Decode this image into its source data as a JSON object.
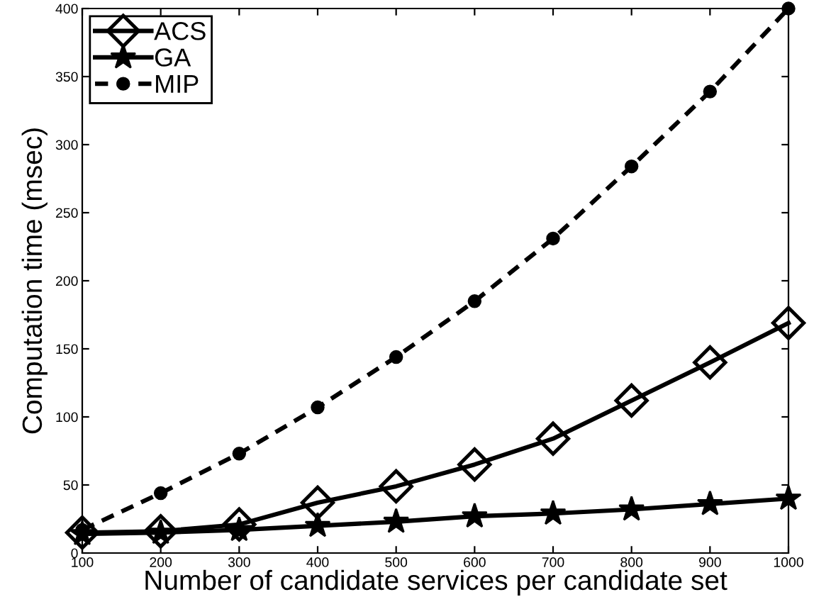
{
  "chart_data": {
    "type": "line",
    "xlabel": "Number of candidate services per candidate set",
    "ylabel": "Computation time (msec)",
    "x": [
      100,
      200,
      300,
      400,
      500,
      600,
      700,
      800,
      900,
      1000
    ],
    "series": [
      {
        "name": "ACS",
        "color": "#000000",
        "marker": "diamond",
        "line_style": "solid",
        "values": [
          15,
          16,
          21,
          37,
          49,
          65,
          84,
          112,
          140,
          169
        ]
      },
      {
        "name": "GA",
        "color": "#000000",
        "marker": "star",
        "line_style": "solid",
        "values": [
          14,
          15,
          17,
          20,
          23,
          27,
          29,
          32,
          36,
          40
        ]
      },
      {
        "name": "MIP",
        "color": "#000000",
        "marker": "circle",
        "line_style": "dashed",
        "values": [
          17,
          44,
          73,
          107,
          144,
          185,
          231,
          284,
          339,
          400
        ]
      }
    ],
    "xlim": [
      100,
      1000
    ],
    "ylim": [
      0,
      400
    ],
    "xticks": [
      100,
      200,
      300,
      400,
      500,
      600,
      700,
      800,
      900,
      1000
    ],
    "yticks": [
      0,
      50,
      100,
      150,
      200,
      250,
      300,
      350,
      400
    ],
    "grid": false,
    "legend": "top left"
  }
}
